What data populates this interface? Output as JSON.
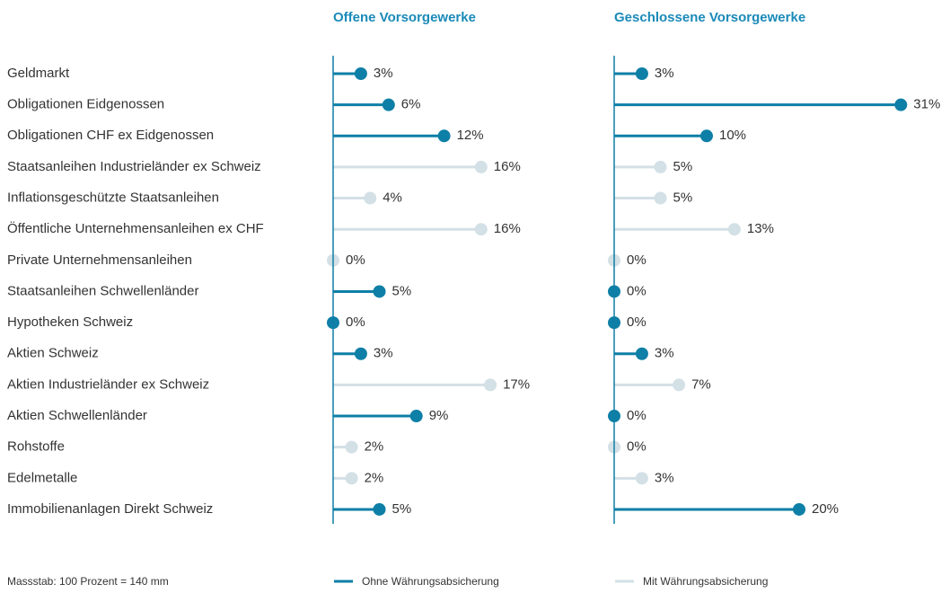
{
  "chart_data": {
    "type": "lollipop",
    "categories": [
      "Geldmarkt",
      "Obligationen Eidgenossen",
      "Obligationen CHF ex Eidgenossen",
      "Staatsanleihen Industrieländer ex Schweiz",
      "Inflationsgeschützte Staatsanleihen",
      "Öffentliche Unternehmensanleihen ex CHF",
      "Private Unternehmensanleihen",
      "Staatsanleihen Schwellenländer",
      "Hypotheken Schweiz",
      "Aktien Schweiz",
      "Aktien Industrieländer ex Schweiz",
      "Aktien Schwellenländer",
      "Rohstoffe",
      "Edelmetalle",
      "Immobilienanlagen Direkt Schweiz"
    ],
    "series": [
      {
        "name": "Ohne Währungsabsicherung",
        "color": "#0e7fa6"
      },
      {
        "name": "Mit Währungsabsicherung",
        "color": "#d3e0e6"
      }
    ],
    "panels": [
      {
        "title": "Offene Vorsorgewerke",
        "values": [
          [
            3,
            6,
            12,
            null,
            null,
            null,
            null,
            5,
            0,
            3,
            null,
            9,
            null,
            null,
            5
          ],
          [
            null,
            null,
            null,
            16,
            4,
            16,
            0,
            null,
            null,
            null,
            17,
            null,
            2,
            2,
            null
          ]
        ],
        "value_labels": [
          [
            "3%",
            "6%",
            "12%",
            null,
            null,
            null,
            null,
            "5%",
            "0%",
            "3%",
            null,
            "9%",
            null,
            null,
            "5%"
          ],
          [
            null,
            null,
            null,
            "16%",
            "4%",
            "16%",
            "0%",
            null,
            null,
            null,
            "17%",
            null,
            "2%",
            "2%",
            null
          ]
        ]
      },
      {
        "title": "Geschlossene Vorsorgewerke",
        "values": [
          [
            3,
            31,
            10,
            null,
            null,
            null,
            null,
            0,
            0,
            3,
            null,
            0,
            null,
            null,
            20
          ],
          [
            null,
            null,
            null,
            5,
            5,
            13,
            0,
            null,
            null,
            null,
            7,
            null,
            0,
            3,
            null
          ]
        ],
        "value_labels": [
          [
            "3%",
            "31%",
            "10%",
            null,
            null,
            null,
            null,
            "0%",
            "0%",
            "3%",
            null,
            "0%",
            null,
            null,
            "20%"
          ],
          [
            null,
            null,
            null,
            "5%",
            "5%",
            "13%",
            "0%",
            null,
            null,
            null,
            "7%",
            null,
            "0%",
            "3%",
            null
          ]
        ]
      }
    ],
    "footnote": "Massstab: 100 Prozent = 140 mm"
  }
}
